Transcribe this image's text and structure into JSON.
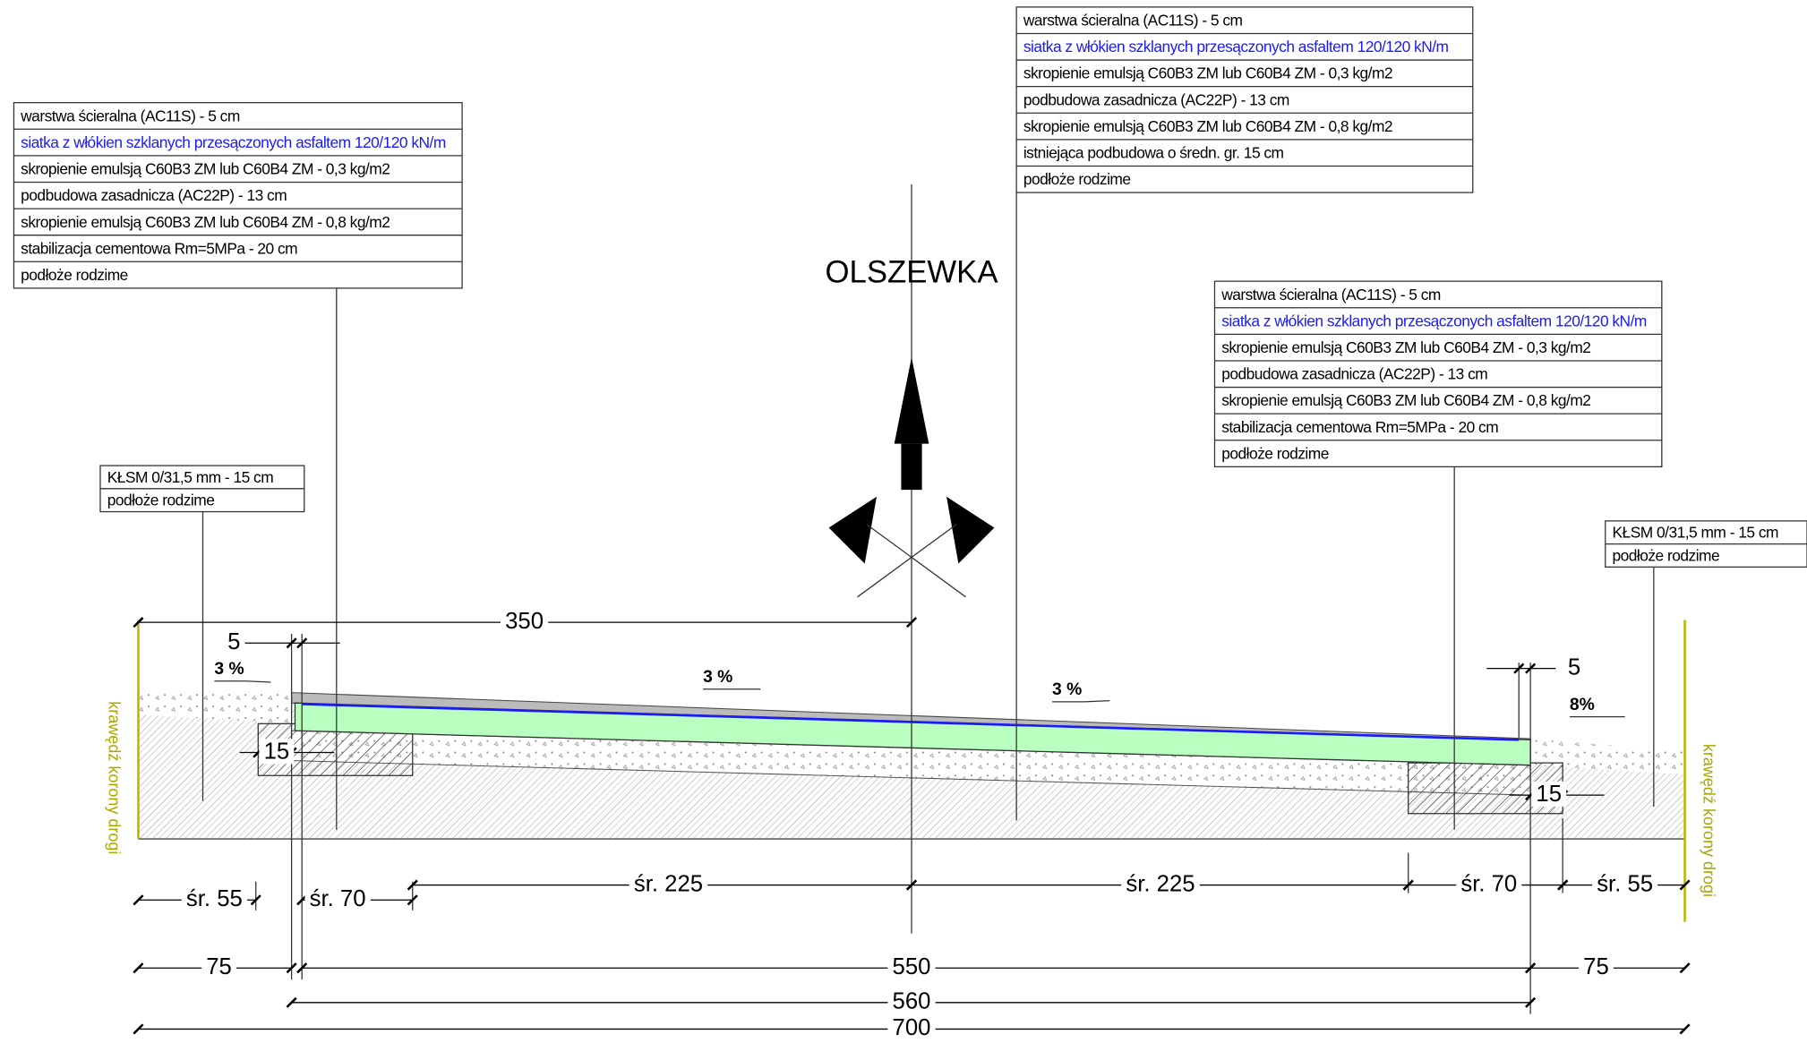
{
  "title": "OLSZEWKA",
  "layers_left": {
    "rows": [
      "warstwa ścieralna (AC11S) - 5 cm",
      "siatka z włókien szklanych przesączonych asfaltem 120/120 kN/m",
      "skropienie emulsją C60B3 ZM lub C60B4 ZM - 0,3 kg/m2",
      "podbudowa zasadnicza (AC22P) - 13 cm",
      "skropienie emulsją C60B3 ZM lub C60B4 ZM - 0,8 kg/m2",
      "stabilizacja cementowa Rm=5MPa - 20 cm",
      "podłoże rodzime"
    ]
  },
  "layers_center": {
    "rows": [
      "warstwa ścieralna (AC11S) - 5 cm",
      "siatka z włókien szklanych przesączonych asfaltem 120/120 kN/m",
      "skropienie emulsją C60B3 ZM lub C60B4 ZM - 0,3 kg/m2",
      "podbudowa zasadnicza (AC22P) - 13 cm",
      "skropienie emulsją C60B3 ZM lub C60B4 ZM - 0,8 kg/m2",
      "istniejąca podbudowa o średn. gr. 15 cm",
      "podłoże rodzime"
    ]
  },
  "layers_right": {
    "rows": [
      "warstwa ścieralna (AC11S) - 5 cm",
      "siatka z włókien szklanych przesączonych asfaltem 120/120 kN/m",
      "skropienie emulsją C60B3 ZM lub C60B4 ZM - 0,3 kg/m2",
      "podbudowa zasadnicza (AC22P) - 13 cm",
      "skropienie emulsją C60B3 ZM lub C60B4 ZM - 0,8 kg/m2",
      "stabilizacja cementowa Rm=5MPa - 20 cm",
      "podłoże rodzime"
    ]
  },
  "shoulder_left": {
    "rows": [
      "KŁSM 0/31,5 mm - 15 cm",
      "podłoże rodzime"
    ]
  },
  "shoulder_right": {
    "rows": [
      "KŁSM 0/31,5 mm - 15 cm",
      "podłoże rodzime"
    ]
  },
  "slopes": [
    "3 %",
    "3 %",
    "3 %",
    "8%"
  ],
  "dimensions": {
    "top": [
      350,
      5,
      5
    ],
    "layer": [
      15,
      15
    ],
    "avg": [
      "śr. 55",
      "śr. 70",
      "śr. 225",
      "śr. 225",
      "śr. 70",
      "śr. 55"
    ],
    "widths": [
      75,
      550,
      75
    ],
    "total": [
      560,
      700
    ]
  },
  "edge_labels": [
    "krawędź korony drogi",
    "krawędź korony drogi"
  ]
}
